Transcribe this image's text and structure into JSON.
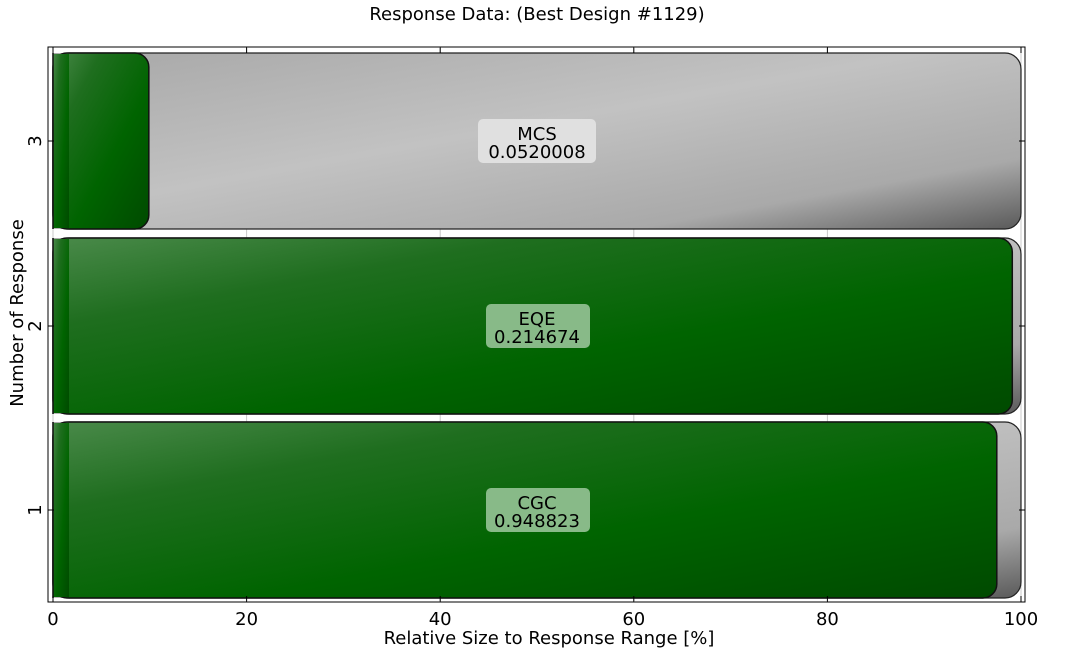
{
  "chart_data": {
    "type": "bar",
    "orientation": "horizontal",
    "title": "Response Data: (Best Design #1129)",
    "xlabel": "Relative Size to Response Range [%]",
    "ylabel": "Number of Response",
    "xlim": [
      0,
      100
    ],
    "xticks": [
      "0",
      "20",
      "40",
      "60",
      "80",
      "100"
    ],
    "grid": true,
    "categories": [
      "1",
      "2",
      "3"
    ],
    "bars": [
      {
        "category": "1",
        "name": "CGC",
        "value_label": "0.948823",
        "percent": 97.5,
        "track_percent": 100,
        "label_color": "#8fbf8f"
      },
      {
        "category": "2",
        "name": "EQE",
        "value_label": "0.214674",
        "percent": 99.1,
        "track_percent": 100,
        "label_color": "#8fbf8f"
      },
      {
        "category": "3",
        "name": "MCS",
        "value_label": "0.0520008",
        "percent": 9.9,
        "track_percent": 100,
        "label_color": "#e2e2e2"
      }
    ],
    "colors": {
      "fill": "#006400",
      "track": "#bdbdbd",
      "grid": "#c8c8c8"
    }
  }
}
